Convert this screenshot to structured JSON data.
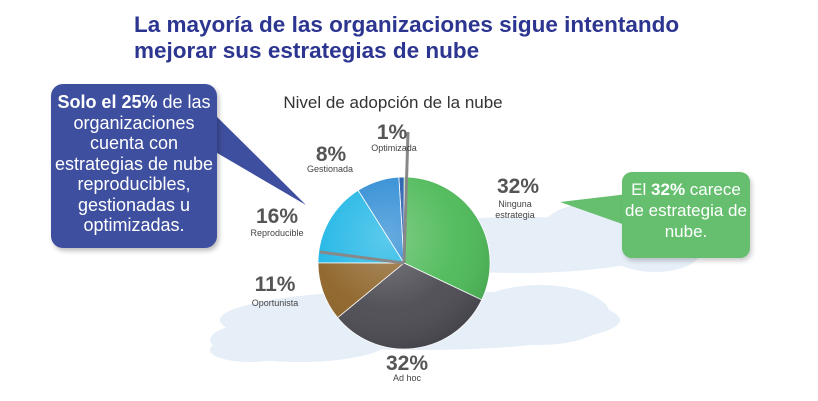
{
  "header": {
    "title_line1": "La mayoría de las organizaciones sigue intentando",
    "title_line2": "mejorar sus estrategias de nube"
  },
  "callout_left": {
    "lead": "Solo el",
    "percent": "25%",
    "rest": "de las organizaciones cuenta con estrategias de nube reproducibles, gestionadas u optimizadas."
  },
  "callout_right": {
    "lead": "El",
    "percent": "32%",
    "rest": "carece de estrategia de nube."
  },
  "colors": {
    "title": "#2c3590",
    "callout_left": "#3f4f9f",
    "callout_right": "#66bf6f"
  },
  "chart_data": {
    "type": "pie",
    "title": "Nivel de adopción de la nube",
    "slices": [
      {
        "label": "Optimizada",
        "value": 1,
        "display": "1%",
        "color": "#1c56a8"
      },
      {
        "label": "Ninguna estrategia",
        "value": 32,
        "display": "32%",
        "color": "#4cb957"
      },
      {
        "label": "Ad hoc",
        "value": 32,
        "display": "32%",
        "color": "#4b4a52"
      },
      {
        "label": "Oportunista",
        "value": 11,
        "display": "11%",
        "color": "#8d6327"
      },
      {
        "label": "Reproducible",
        "value": 16,
        "display": "16%",
        "color": "#1cb5e5"
      },
      {
        "label": "Gestionada",
        "value": 8,
        "display": "8%",
        "color": "#2b8ad3"
      }
    ]
  }
}
